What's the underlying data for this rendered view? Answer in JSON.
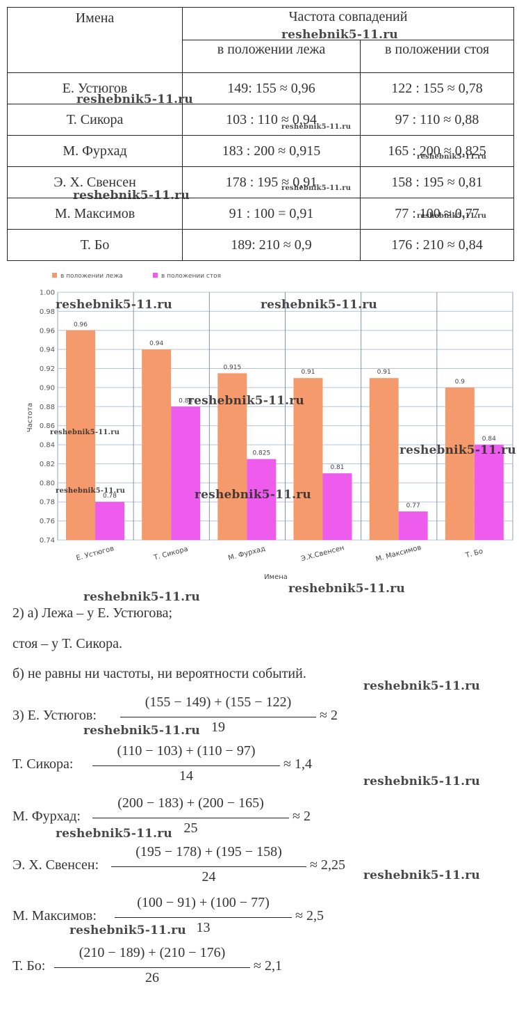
{
  "table": {
    "header": {
      "names": "Имена",
      "frequency": "Частота совпадений",
      "lying": "в положении лежа",
      "standing": "в положении стоя"
    },
    "rows": [
      [
        "Е. Устюгов",
        "149: 155 ≈ 0,96",
        "122 : 155 ≈ 0,78"
      ],
      [
        "Т. Сикора",
        "103 : 110 ≈ 0,94",
        "97 : 110 ≈ 0,88"
      ],
      [
        "М. Фурхад",
        "183 : 200 ≈ 0,915",
        "165 : 200 ≈ 0,825"
      ],
      [
        "Э. Х. Свенсен",
        "178 : 195 ≈ 0,91",
        "158 : 195 ≈ 0,81"
      ],
      [
        "М. Максимов",
        "91 : 100 = 0,91",
        "77 : 100 ≈ 0,77"
      ],
      [
        "Т. Бо",
        "189: 210 ≈ 0,9",
        "176 : 210 ≈ 0,84"
      ]
    ]
  },
  "chart_data": {
    "type": "bar",
    "x_label": "Имена",
    "y_label": "Частота",
    "categories": [
      "Е. Устюгов",
      "Т. Сикора",
      "М. Фурхад",
      "Э.Х.Свенсен",
      "М. Максимов",
      "Т. Бо"
    ],
    "series": [
      {
        "name": "в положении лежа",
        "color": "#f59a6c",
        "values": [
          0.96,
          0.94,
          0.915,
          0.91,
          0.91,
          0.9
        ]
      },
      {
        "name": "в положении стоя",
        "color": "#ee5cee",
        "values": [
          0.78,
          0.88,
          0.825,
          0.81,
          0.77,
          0.84
        ]
      }
    ],
    "ylim": [
      0.74,
      1.0
    ],
    "yticks": [
      0.74,
      0.76,
      0.78,
      {
        "value": 0.8,
        "label": "0.80"
      },
      0.82,
      0.84,
      0.86,
      0.88,
      {
        "value": 0.9,
        "label": "0.90"
      },
      0.92,
      0.94,
      0.96,
      0.98,
      {
        "value": 1.0,
        "label": "1.00"
      }
    ],
    "grid": true,
    "legend": "top"
  },
  "answers": {
    "part2": [
      "2) а) Лежа – у Е. Устюгова;",
      "стоя – у Т. Сикора.",
      "б) не равны ни частоты, ни вероятности событий."
    ],
    "part3": [
      {
        "label": "3) Е. Устюгов:",
        "numerator": "(155 − 149) + (155 − 122)",
        "denominator": "19",
        "result": "≈ 2"
      },
      {
        "label": "Т. Сикора:",
        "numerator": "(110 − 103) + (110 − 97)",
        "denominator": "14",
        "result": "≈ 1,4"
      },
      {
        "label": "М. Фурхад:",
        "numerator": "(200 − 183) + (200 − 165)",
        "denominator": "25",
        "result": "≈ 2"
      },
      {
        "label": "Э. Х. Свенсен:",
        "numerator": "(195 − 178) + (195 − 158)",
        "denominator": "24",
        "result": "≈ 2,25"
      },
      {
        "label": "М. Максимов:",
        "numerator": "(100 − 91) + (100 − 77)",
        "denominator": "13",
        "result": "≈ 2,5"
      },
      {
        "label": "Т. Бо:",
        "numerator": "(210 − 189) + (210 − 176)",
        "denominator": "26",
        "result": "≈ 2,1"
      }
    ]
  },
  "watermark": "reshebnik5-11.ru"
}
